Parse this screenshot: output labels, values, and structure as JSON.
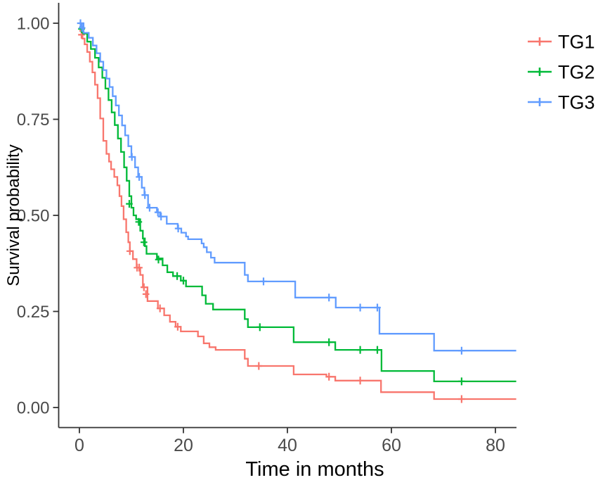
{
  "chart_data": {
    "type": "line",
    "variant": "kaplan-meier-step",
    "title": "",
    "xlabel": "Time in months",
    "ylabel": "Survival probability",
    "xlim": [
      -4,
      88
    ],
    "ylim": [
      0,
      1.0
    ],
    "x_ticks": [
      0,
      20,
      40,
      60,
      80
    ],
    "x_tick_labels": [
      "0",
      "20",
      "40",
      "60",
      "80"
    ],
    "y_ticks": [
      0,
      0.25,
      0.5,
      0.75,
      1
    ],
    "y_tick_labels": [
      "0.00",
      "0.25",
      "0.50",
      "0.75",
      "1.00"
    ],
    "grid": false,
    "legend_position": "right",
    "axis_color": "#333333",
    "tick_label_color": "#4a4a4a",
    "title_color": "#000000",
    "end_time": 84,
    "series": [
      {
        "name": "TG1",
        "color": "#F8766D",
        "steps": [
          [
            0,
            0.98
          ],
          [
            0.6,
            0.96
          ],
          [
            1,
            0.945
          ],
          [
            1.5,
            0.925
          ],
          [
            2,
            0.9
          ],
          [
            2.5,
            0.872
          ],
          [
            3,
            0.84
          ],
          [
            3.5,
            0.805
          ],
          [
            4,
            0.752
          ],
          [
            4.6,
            0.694
          ],
          [
            5.2,
            0.66
          ],
          [
            5.7,
            0.64
          ],
          [
            6.1,
            0.62
          ],
          [
            6.7,
            0.6
          ],
          [
            7.3,
            0.578
          ],
          [
            7.7,
            0.55
          ],
          [
            8.1,
            0.524
          ],
          [
            8.5,
            0.49
          ],
          [
            9,
            0.456
          ],
          [
            9.4,
            0.43
          ],
          [
            9.7,
            0.407
          ],
          [
            10.3,
            0.386
          ],
          [
            11,
            0.364
          ],
          [
            11.7,
            0.345
          ],
          [
            12.2,
            0.313
          ],
          [
            13.1,
            0.277
          ],
          [
            15.1,
            0.258
          ],
          [
            16.3,
            0.24
          ],
          [
            17.4,
            0.223
          ],
          [
            18.5,
            0.21
          ],
          [
            19.5,
            0.198
          ],
          [
            22.8,
            0.185
          ],
          [
            23.9,
            0.167
          ],
          [
            25,
            0.157
          ],
          [
            26.2,
            0.15
          ],
          [
            31.8,
            0.127
          ],
          [
            32.4,
            0.108
          ],
          [
            41.2,
            0.086
          ],
          [
            47.5,
            0.08
          ],
          [
            49.2,
            0.07
          ],
          [
            58,
            0.04
          ],
          [
            68.2,
            0.022
          ]
        ],
        "censor_marks": [
          [
            0.4,
            0.97
          ],
          [
            9.7,
            0.407
          ],
          [
            11.1,
            0.364
          ],
          [
            11.5,
            0.364
          ],
          [
            12.4,
            0.313
          ],
          [
            12.8,
            0.295
          ],
          [
            15.5,
            0.258
          ],
          [
            18.9,
            0.21
          ],
          [
            34.5,
            0.108
          ],
          [
            48,
            0.08
          ],
          [
            54,
            0.07
          ],
          [
            73.5,
            0.022
          ]
        ]
      },
      {
        "name": "TG2",
        "color": "#00BA38",
        "steps": [
          [
            0,
            0.99
          ],
          [
            0.7,
            0.973
          ],
          [
            1.5,
            0.952
          ],
          [
            2.2,
            0.933
          ],
          [
            3,
            0.91
          ],
          [
            3.7,
            0.885
          ],
          [
            4.4,
            0.858
          ],
          [
            5,
            0.83
          ],
          [
            5.6,
            0.8
          ],
          [
            6.2,
            0.768
          ],
          [
            6.8,
            0.735
          ],
          [
            7.4,
            0.7
          ],
          [
            8,
            0.665
          ],
          [
            8.6,
            0.625
          ],
          [
            9.1,
            0.59
          ],
          [
            9.6,
            0.55
          ],
          [
            10,
            0.52
          ],
          [
            10.4,
            0.5
          ],
          [
            10.9,
            0.49
          ],
          [
            11.7,
            0.46
          ],
          [
            12.2,
            0.44
          ],
          [
            12.6,
            0.42
          ],
          [
            12.9,
            0.4
          ],
          [
            14.9,
            0.388
          ],
          [
            16,
            0.37
          ],
          [
            16.9,
            0.352
          ],
          [
            18,
            0.342
          ],
          [
            19.5,
            0.33
          ],
          [
            20.5,
            0.315
          ],
          [
            23.6,
            0.292
          ],
          [
            24.3,
            0.27
          ],
          [
            25.7,
            0.255
          ],
          [
            31.8,
            0.23
          ],
          [
            32.4,
            0.209
          ],
          [
            41.2,
            0.17
          ],
          [
            49.2,
            0.15
          ],
          [
            58.1,
            0.095
          ],
          [
            68.2,
            0.068
          ]
        ],
        "censor_marks": [
          [
            0.4,
            0.985
          ],
          [
            9.6,
            0.53
          ],
          [
            11.4,
            0.483
          ],
          [
            12.4,
            0.43
          ],
          [
            15.2,
            0.385
          ],
          [
            18.8,
            0.342
          ],
          [
            20,
            0.33
          ],
          [
            34.7,
            0.209
          ],
          [
            48,
            0.17
          ],
          [
            54,
            0.15
          ],
          [
            57.3,
            0.15
          ],
          [
            73.5,
            0.068
          ]
        ]
      },
      {
        "name": "TG3",
        "color": "#619CFF",
        "steps": [
          [
            0,
            1.0
          ],
          [
            0.8,
            0.975
          ],
          [
            1.8,
            0.962
          ],
          [
            2.6,
            0.942
          ],
          [
            3.3,
            0.922
          ],
          [
            4,
            0.9
          ],
          [
            4.6,
            0.878
          ],
          [
            5.2,
            0.856
          ],
          [
            5.8,
            0.834
          ],
          [
            6.4,
            0.81
          ],
          [
            7,
            0.786
          ],
          [
            7.6,
            0.76
          ],
          [
            8.2,
            0.734
          ],
          [
            8.8,
            0.708
          ],
          [
            9.4,
            0.68
          ],
          [
            10,
            0.652
          ],
          [
            10.7,
            0.625
          ],
          [
            11.3,
            0.6
          ],
          [
            12,
            0.572
          ],
          [
            12.5,
            0.553
          ],
          [
            13.2,
            0.52
          ],
          [
            14.9,
            0.508
          ],
          [
            15.5,
            0.497
          ],
          [
            16.8,
            0.478
          ],
          [
            18.9,
            0.466
          ],
          [
            19.6,
            0.455
          ],
          [
            20.5,
            0.445
          ],
          [
            20.9,
            0.438
          ],
          [
            23.5,
            0.427
          ],
          [
            23.9,
            0.417
          ],
          [
            24.5,
            0.404
          ],
          [
            25.3,
            0.39
          ],
          [
            26,
            0.377
          ],
          [
            31.8,
            0.345
          ],
          [
            32.4,
            0.328
          ],
          [
            41.5,
            0.286
          ],
          [
            49.3,
            0.26
          ],
          [
            57.7,
            0.192
          ],
          [
            68.2,
            0.148
          ]
        ],
        "censor_marks": [
          [
            0.2,
            1.0
          ],
          [
            0.5,
            0.988
          ],
          [
            10.1,
            0.652
          ],
          [
            11.5,
            0.6
          ],
          [
            12.6,
            0.553
          ],
          [
            13.5,
            0.52
          ],
          [
            15.1,
            0.508
          ],
          [
            15.7,
            0.497
          ],
          [
            19,
            0.466
          ],
          [
            35.4,
            0.328
          ],
          [
            48,
            0.286
          ],
          [
            54,
            0.26
          ],
          [
            57.3,
            0.26
          ],
          [
            73.5,
            0.148
          ]
        ]
      }
    ]
  }
}
